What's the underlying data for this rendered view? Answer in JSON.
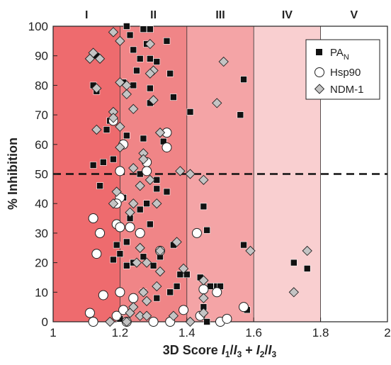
{
  "chart_data": {
    "type": "scatter",
    "xlabel": "3D Score",
    "xlabel_parts": [
      "I",
      "1",
      "/",
      "I",
      "3",
      " + ",
      "I",
      "2",
      "/",
      "I",
      "3"
    ],
    "ylabel": "% Inhibition",
    "xlim": [
      1,
      2
    ],
    "ylim": [
      0,
      100
    ],
    "xticks": [
      1,
      1.2,
      1.4,
      1.6,
      1.8,
      2
    ],
    "xtick_labels": [
      "1",
      "1.2",
      "1.4",
      "1.6",
      "1.8",
      "2"
    ],
    "yticks": [
      0,
      10,
      20,
      30,
      40,
      50,
      60,
      70,
      80,
      90,
      100
    ],
    "threshold": 50,
    "regions": [
      {
        "label": "I",
        "from": 1.0,
        "to": 1.2,
        "color": "#ee6b6e"
      },
      {
        "label": "II",
        "from": 1.2,
        "to": 1.4,
        "color": "#f08587"
      },
      {
        "label": "III",
        "from": 1.4,
        "to": 1.6,
        "color": "#f4a4a6"
      },
      {
        "label": "IV",
        "from": 1.6,
        "to": 1.8,
        "color": "#f9cfd0"
      },
      {
        "label": "V",
        "from": 1.8,
        "to": 2.0,
        "color": "#ffffff"
      }
    ],
    "legend": {
      "position": "top-right"
    },
    "series": [
      {
        "name": "PA",
        "name_sub": "N",
        "marker": "square",
        "color": "#111111",
        "points": [
          [
            1.22,
            100
          ],
          [
            1.27,
            99
          ],
          [
            1.29,
            99
          ],
          [
            1.23,
            97
          ],
          [
            1.28,
            94
          ],
          [
            1.34,
            95
          ],
          [
            1.24,
            92
          ],
          [
            1.13,
            90
          ],
          [
            1.26,
            89
          ],
          [
            1.29,
            89
          ],
          [
            1.31,
            88
          ],
          [
            1.25,
            85
          ],
          [
            1.35,
            84
          ],
          [
            1.12,
            80
          ],
          [
            1.13,
            78
          ],
          [
            1.21,
            81
          ],
          [
            1.24,
            80
          ],
          [
            1.29,
            79
          ],
          [
            1.36,
            76
          ],
          [
            1.29,
            74
          ],
          [
            1.41,
            71
          ],
          [
            1.56,
            70
          ],
          [
            1.57,
            82
          ],
          [
            1.17,
            68
          ],
          [
            1.16,
            65
          ],
          [
            1.22,
            63
          ],
          [
            1.27,
            62
          ],
          [
            1.33,
            61
          ],
          [
            1.18,
            55
          ],
          [
            1.15,
            54
          ],
          [
            1.12,
            53
          ],
          [
            1.26,
            50
          ],
          [
            1.31,
            48
          ],
          [
            1.14,
            46
          ],
          [
            1.31,
            45
          ],
          [
            1.34,
            44
          ],
          [
            1.21,
            42
          ],
          [
            1.28,
            40
          ],
          [
            1.26,
            38
          ],
          [
            1.45,
            39
          ],
          [
            1.23,
            35
          ],
          [
            1.29,
            33
          ],
          [
            1.46,
            31
          ],
          [
            1.19,
            26
          ],
          [
            1.22,
            27
          ],
          [
            1.36,
            26
          ],
          [
            1.57,
            26
          ],
          [
            1.2,
            23
          ],
          [
            1.27,
            22
          ],
          [
            1.32,
            22
          ],
          [
            1.22,
            19
          ],
          [
            1.24,
            20
          ],
          [
            1.18,
            21
          ],
          [
            1.3,
            19
          ],
          [
            1.38,
            16
          ],
          [
            1.4,
            16
          ],
          [
            1.72,
            20
          ],
          [
            1.76,
            18
          ],
          [
            1.44,
            15
          ],
          [
            1.37,
            12
          ],
          [
            1.47,
            12
          ],
          [
            1.49,
            12
          ],
          [
            1.5,
            12
          ],
          [
            1.27,
            10
          ],
          [
            1.35,
            10
          ],
          [
            1.31,
            8
          ],
          [
            1.45,
            5
          ],
          [
            1.58,
            4
          ],
          [
            1.46,
            0
          ],
          [
            1.2,
            1
          ]
        ]
      },
      {
        "name": "Hsp90",
        "marker": "circle",
        "color": "#ffffff",
        "points": [
          [
            1.18,
            68
          ],
          [
            1.34,
            64
          ],
          [
            1.21,
            60
          ],
          [
            1.34,
            59
          ],
          [
            1.2,
            51
          ],
          [
            1.28,
            54
          ],
          [
            1.28,
            51
          ],
          [
            1.2,
            42
          ],
          [
            1.19,
            40
          ],
          [
            1.12,
            35
          ],
          [
            1.19,
            33
          ],
          [
            1.2,
            32
          ],
          [
            1.14,
            30
          ],
          [
            1.23,
            32
          ],
          [
            1.43,
            30
          ],
          [
            1.26,
            30
          ],
          [
            1.13,
            23
          ],
          [
            1.32,
            24
          ],
          [
            1.2,
            10
          ],
          [
            1.15,
            9
          ],
          [
            1.24,
            8
          ],
          [
            1.45,
            11
          ],
          [
            1.49,
            10
          ],
          [
            1.11,
            3
          ],
          [
            1.12,
            0
          ],
          [
            1.19,
            2
          ],
          [
            1.22,
            0
          ],
          [
            1.21,
            4
          ],
          [
            1.39,
            4
          ],
          [
            1.44,
            2
          ],
          [
            1.5,
            0
          ],
          [
            1.52,
            1
          ],
          [
            1.57,
            5
          ],
          [
            1.35,
            0
          ],
          [
            1.3,
            0
          ]
        ]
      },
      {
        "name": "NDM-1",
        "marker": "diamond",
        "color": "#c4c4c4",
        "points": [
          [
            1.18,
            98
          ],
          [
            1.12,
            91
          ],
          [
            1.11,
            89
          ],
          [
            1.14,
            89
          ],
          [
            1.2,
            95
          ],
          [
            1.29,
            94
          ],
          [
            1.3,
            85
          ],
          [
            1.2,
            81
          ],
          [
            1.22,
            80
          ],
          [
            1.29,
            84
          ],
          [
            1.51,
            88
          ],
          [
            1.13,
            79
          ],
          [
            1.22,
            77
          ],
          [
            1.18,
            71
          ],
          [
            1.24,
            72
          ],
          [
            1.3,
            75
          ],
          [
            1.49,
            74
          ],
          [
            1.18,
            69
          ],
          [
            1.13,
            65
          ],
          [
            1.2,
            66
          ],
          [
            1.32,
            64
          ],
          [
            1.27,
            57
          ],
          [
            1.2,
            59
          ],
          [
            1.27,
            55
          ],
          [
            1.24,
            52
          ],
          [
            1.29,
            48
          ],
          [
            1.26,
            46
          ],
          [
            1.38,
            51
          ],
          [
            1.41,
            50
          ],
          [
            1.45,
            48
          ],
          [
            1.19,
            44
          ],
          [
            1.24,
            40
          ],
          [
            1.18,
            40
          ],
          [
            1.31,
            40
          ],
          [
            1.23,
            37
          ],
          [
            1.37,
            27
          ],
          [
            1.26,
            25
          ],
          [
            1.32,
            24
          ],
          [
            1.25,
            20
          ],
          [
            1.28,
            20
          ],
          [
            1.32,
            17
          ],
          [
            1.39,
            18
          ],
          [
            1.45,
            14
          ],
          [
            1.59,
            24
          ],
          [
            1.76,
            24
          ],
          [
            1.45,
            8
          ],
          [
            1.72,
            10
          ],
          [
            1.27,
            10
          ],
          [
            1.28,
            7
          ],
          [
            1.31,
            12
          ],
          [
            1.23,
            3
          ],
          [
            1.24,
            5
          ],
          [
            1.26,
            2
          ],
          [
            1.28,
            2
          ],
          [
            1.36,
            2
          ],
          [
            1.22,
            0
          ],
          [
            1.45,
            3
          ],
          [
            1.41,
            0
          ],
          [
            1.17,
            0
          ]
        ]
      }
    ]
  }
}
